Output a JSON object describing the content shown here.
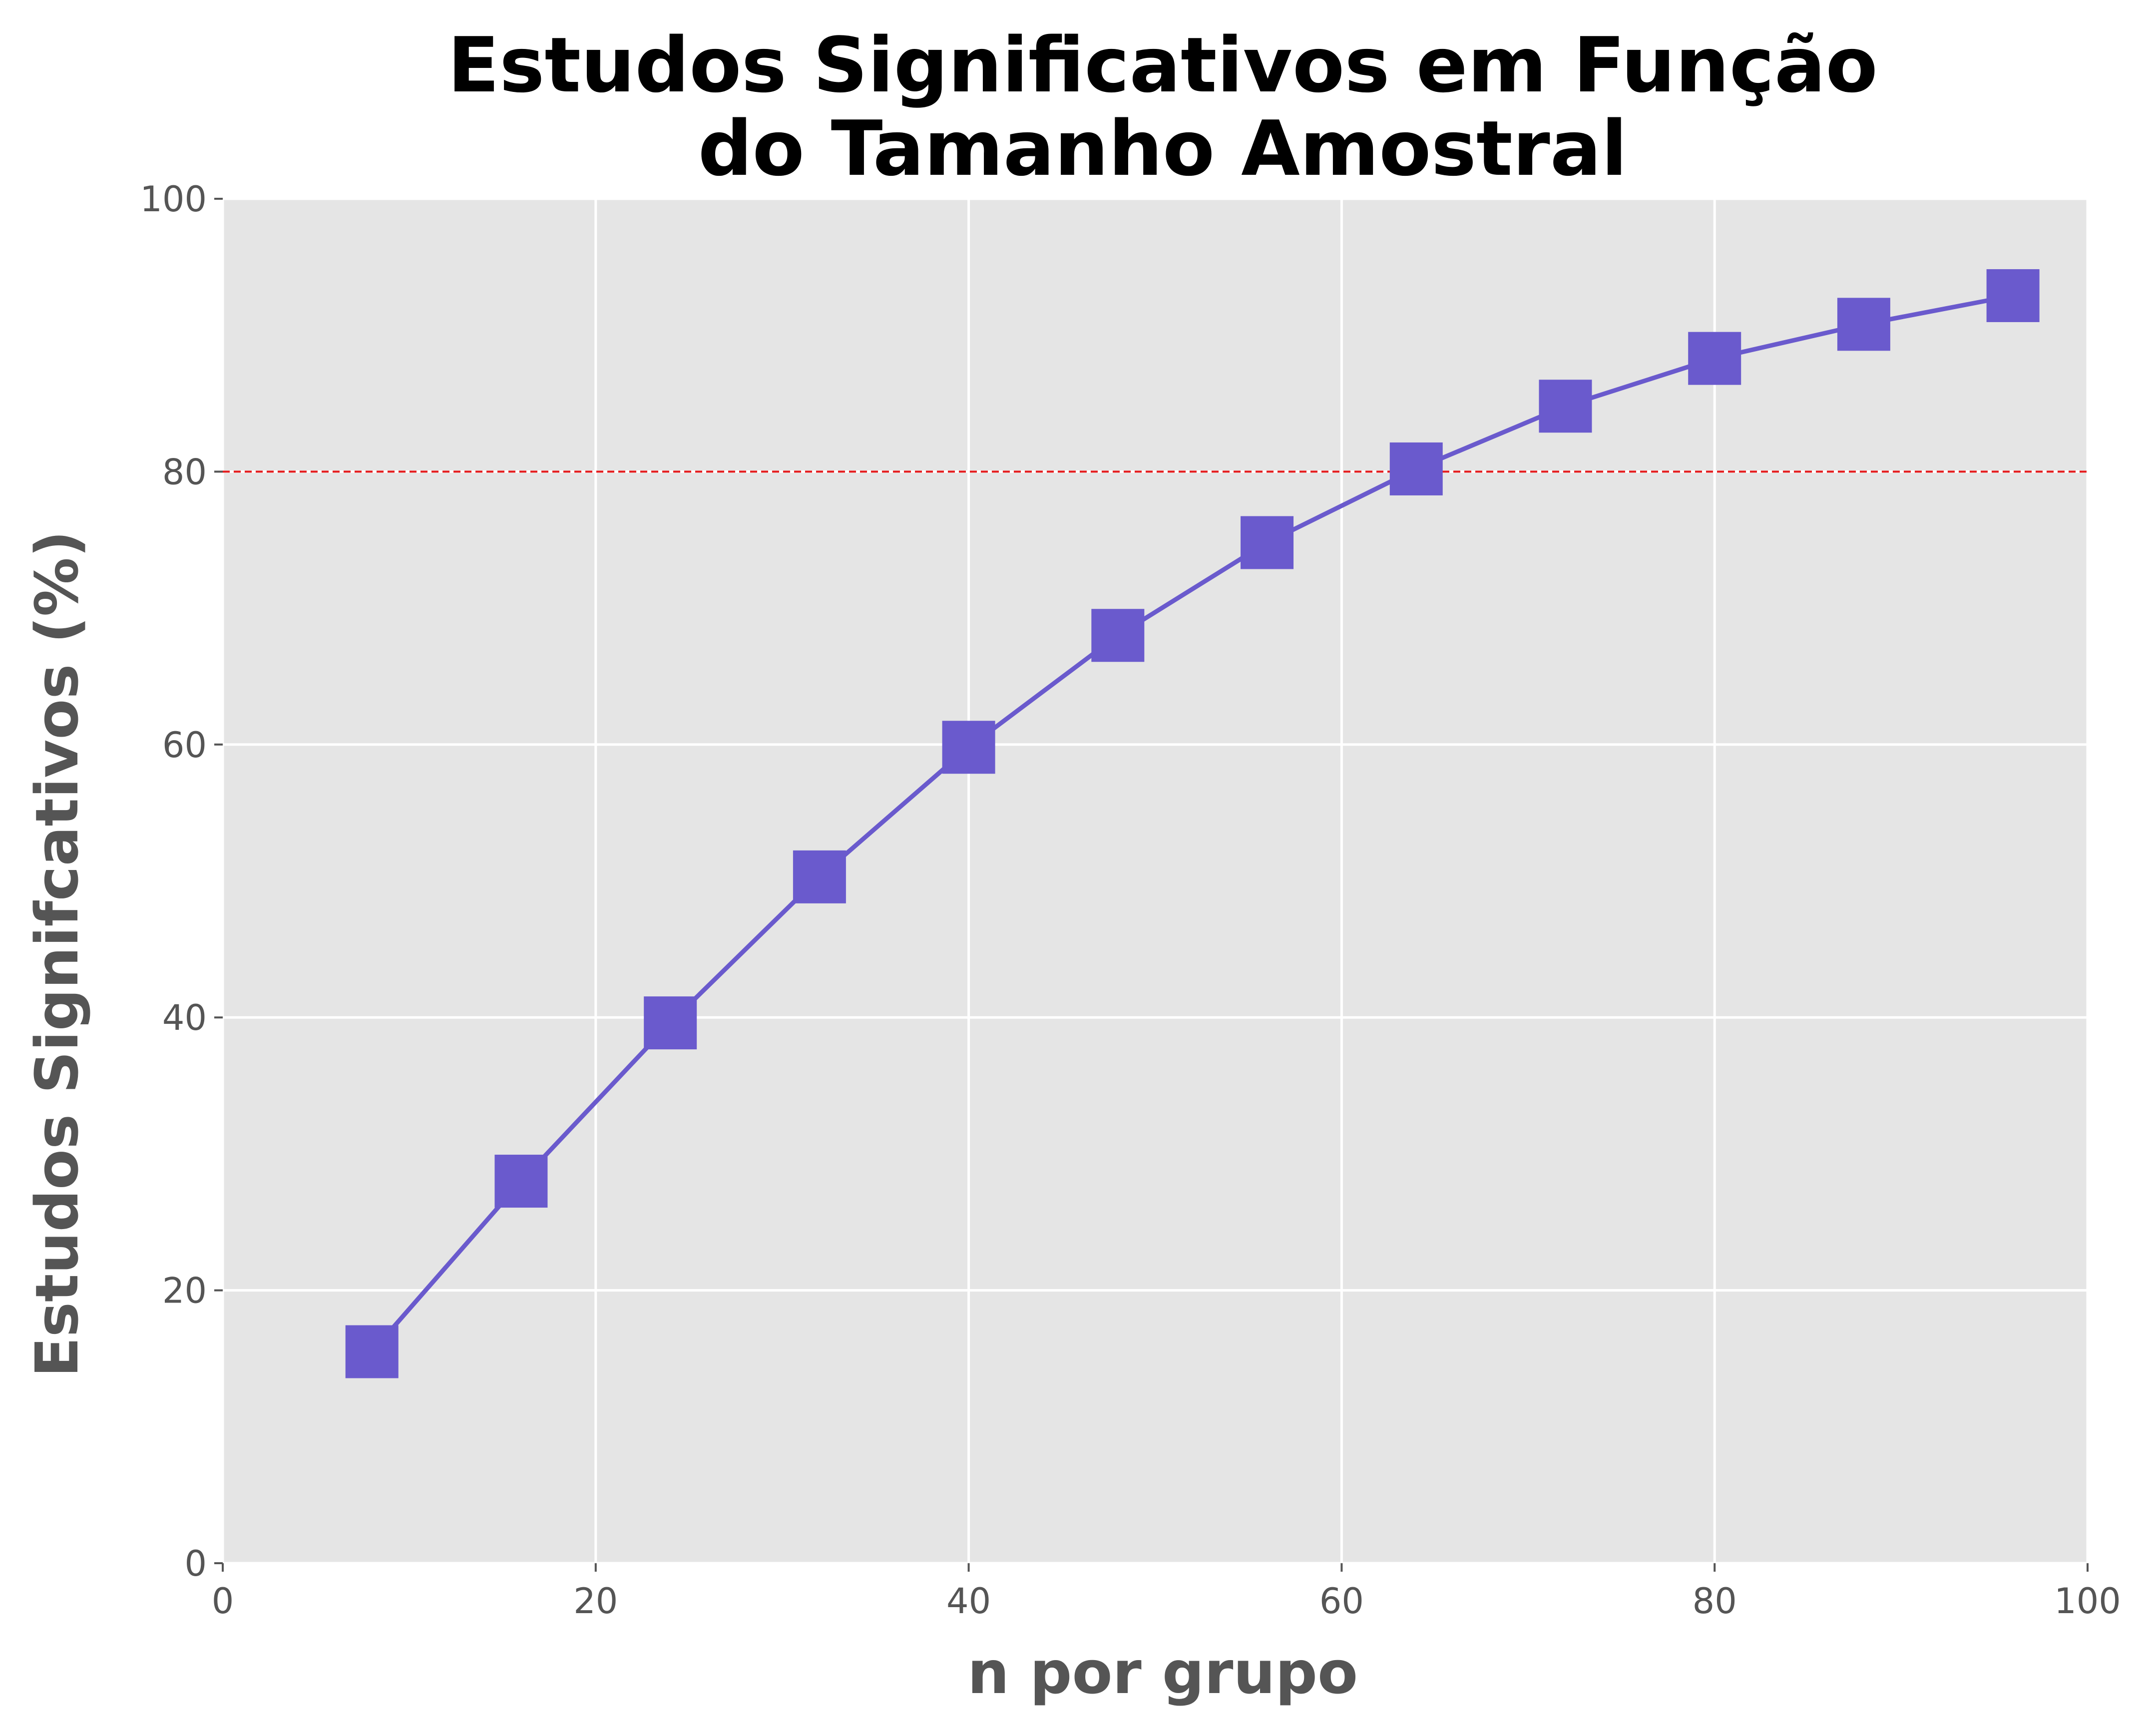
{
  "chart_data": {
    "type": "line",
    "title": "Estudos Significativos em Função\ndo Tamanho Amostral",
    "title_lines": [
      "Estudos Significativos em Função",
      "do Tamanho Amostral"
    ],
    "xlabel": "n por grupo",
    "ylabel": "Estudos Signifcativos (%)",
    "xlim": [
      0,
      100
    ],
    "ylim": [
      0,
      100
    ],
    "xticks": [
      0,
      20,
      40,
      60,
      80,
      100
    ],
    "yticks": [
      0,
      20,
      40,
      60,
      80,
      100
    ],
    "xtick_labels": [
      "0",
      "20",
      "40",
      "60",
      "80",
      "100"
    ],
    "ytick_labels": [
      "0",
      "20",
      "40",
      "60",
      "80",
      "100"
    ],
    "grid": true,
    "series": [
      {
        "x": [
          8,
          16,
          24,
          32,
          40,
          48,
          56,
          64,
          72,
          80,
          88,
          96
        ],
        "y": [
          15.5,
          28.0,
          39.6,
          50.3,
          59.8,
          68.0,
          74.8,
          80.2,
          84.8,
          88.3,
          90.8,
          92.9
        ],
        "color": "#6a5acd",
        "marker": "square"
      }
    ],
    "reference_line": {
      "y": 80,
      "color": "#e41a1c",
      "style": "dashed"
    },
    "colors": {
      "plot_background": "#e5e5e5",
      "grid": "#ffffff",
      "series": "#6a5acd",
      "reference": "#e41a1c"
    }
  }
}
